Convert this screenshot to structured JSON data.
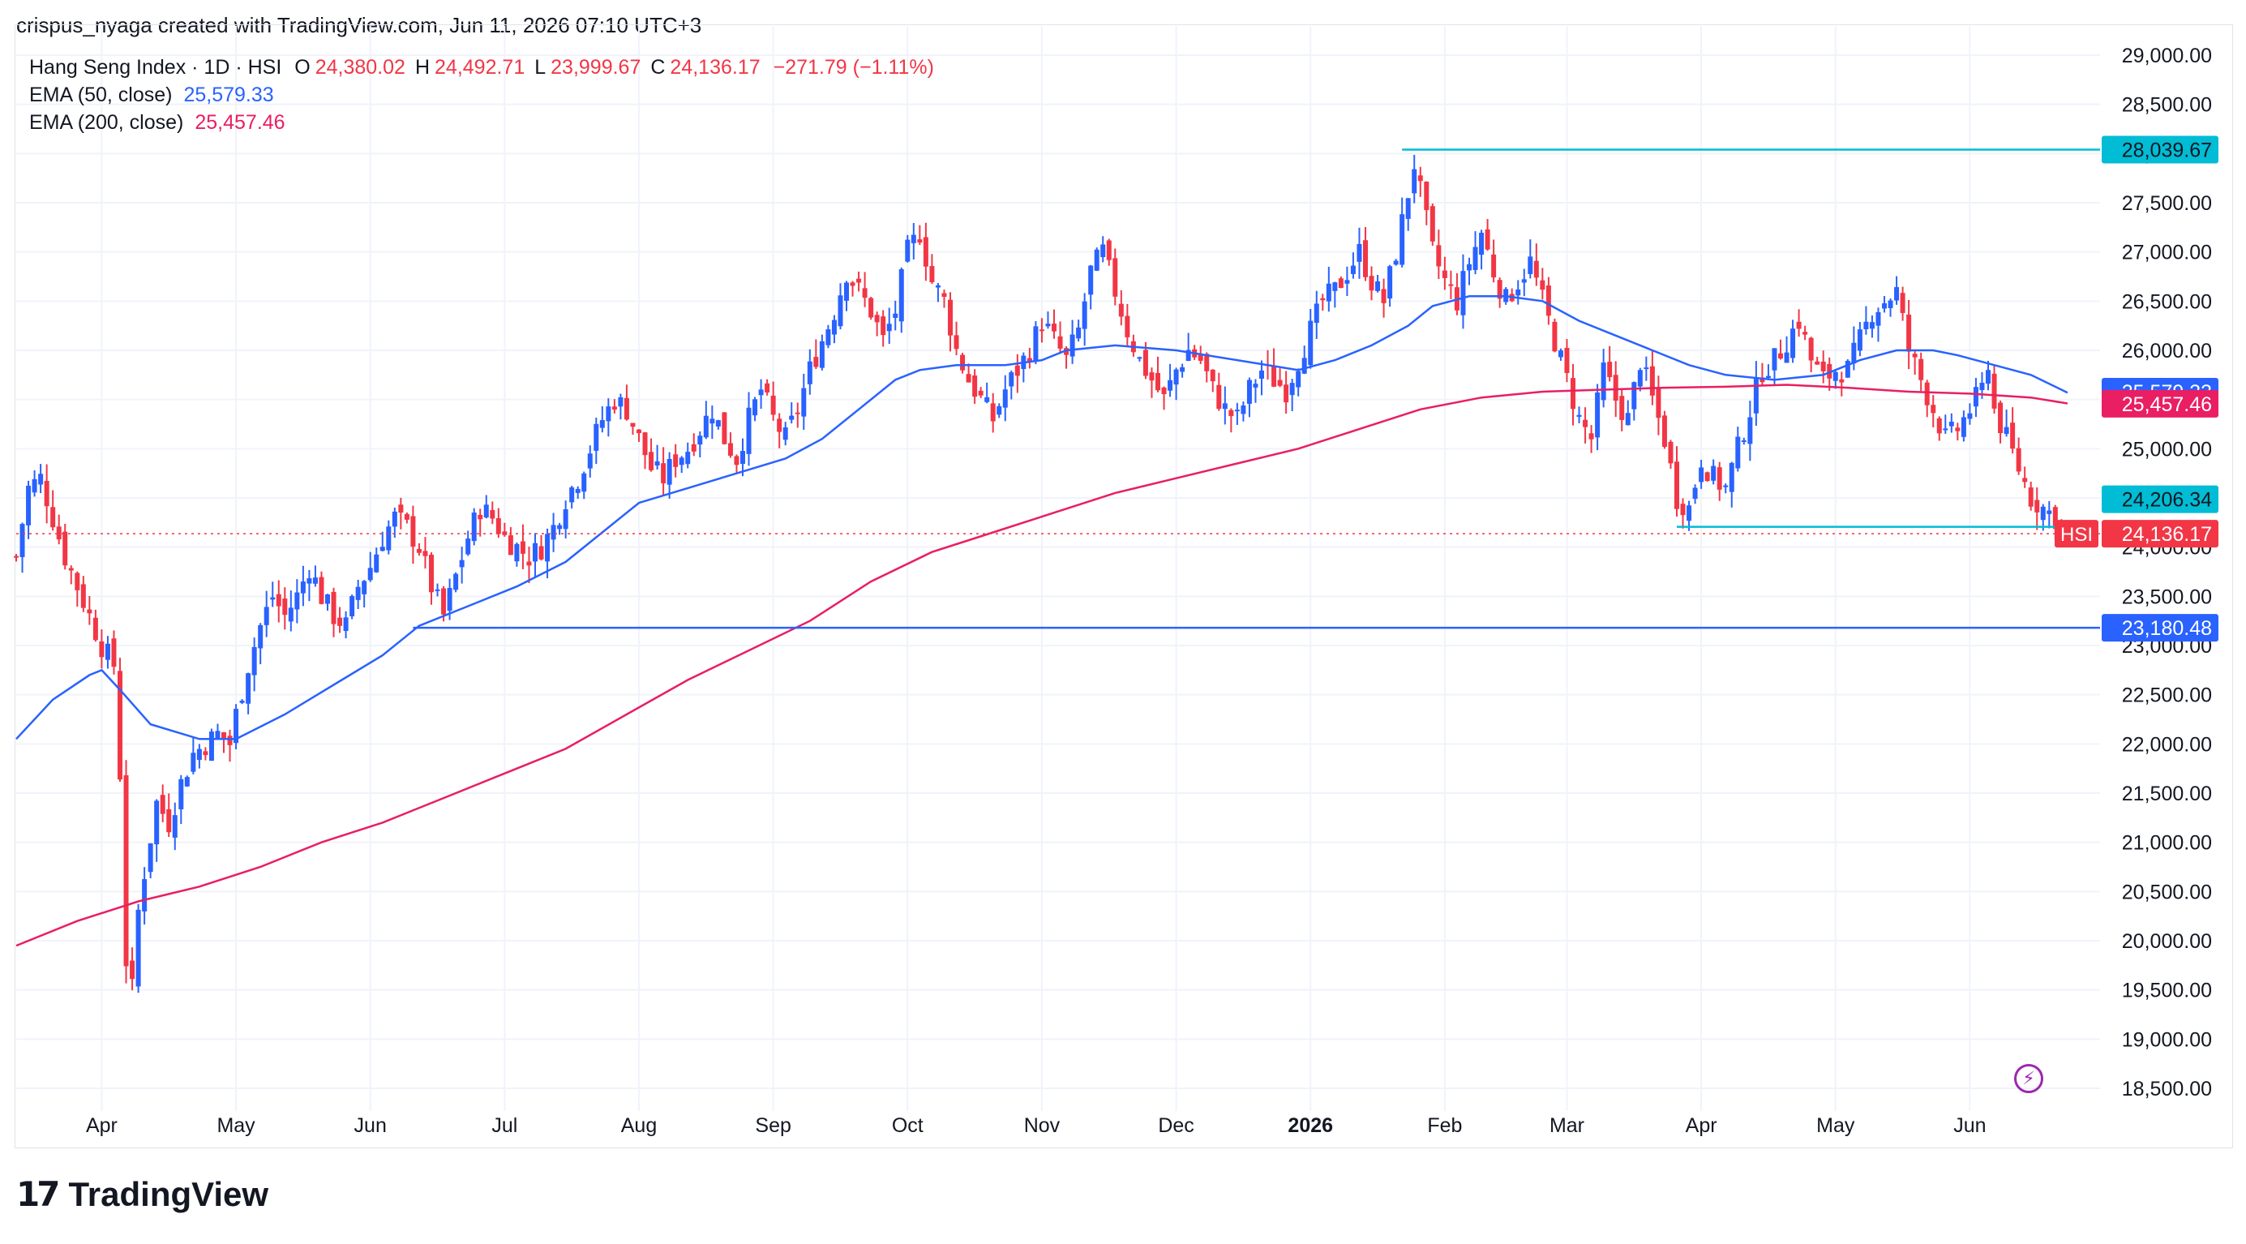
{
  "header": {
    "attribution": "crispus_nyaga created with TradingView.com, Jun 11, 2026 07:10 UTC+3"
  },
  "legend": {
    "symbol": "Hang Seng Index · 1D · HSI",
    "o_label": "O",
    "o_value": "24,380.02",
    "h_label": "H",
    "h_value": "24,492.71",
    "l_label": "L",
    "l_value": "23,999.67",
    "c_label": "C",
    "c_value": "24,136.17",
    "change": "−271.79 (−1.11%)",
    "ema50_label": "EMA (50, close)",
    "ema50_value": "25,579.33",
    "ema200_label": "EMA (200, close)",
    "ema200_value": "25,457.46"
  },
  "footer": {
    "brand": "TradingView"
  },
  "colors": {
    "up": "#2962ff",
    "down": "#f23645",
    "ema50": "#2962ff",
    "ema200": "#e91e63",
    "level": "#00bcd4",
    "support": "#2962ff",
    "grid": "#f0f3fa"
  },
  "chart_data": {
    "type": "candlestick",
    "title": "Hang Seng Index · 1D · HSI",
    "ylim": [
      18300,
      29200
    ],
    "y_ticks": [
      "29,000.00",
      "28,500.00",
      "28,000.00",
      "27,500.00",
      "27,000.00",
      "26,500.00",
      "26,000.00",
      "25,500.00",
      "25,000.00",
      "24,500.00",
      "24,000.00",
      "23,500.00",
      "23,000.00",
      "22,500.00",
      "22,000.00",
      "21,500.00",
      "21,000.00",
      "20,500.00",
      "20,000.00",
      "19,500.00",
      "19,000.00",
      "18,500.00"
    ],
    "x_ticks": [
      "Apr",
      "May",
      "Jun",
      "Jul",
      "Aug",
      "Sep",
      "Oct",
      "Nov",
      "Dec",
      "2026",
      "Feb",
      "Mar",
      "Apr",
      "May",
      "Jun"
    ],
    "x_tick_positions_days": [
      14,
      36,
      58,
      80,
      102,
      124,
      146,
      168,
      190,
      212,
      234,
      254,
      276,
      298,
      320
    ],
    "total_days": 340,
    "price_labels": [
      {
        "value": 28039.67,
        "text": "28,039.67",
        "kind": "level"
      },
      {
        "value": 25579.33,
        "text": "25,579.33",
        "kind": "ema50"
      },
      {
        "value": 25457.46,
        "text": "25,457.46",
        "kind": "ema200"
      },
      {
        "value": 24206.34,
        "text": "24,206.34",
        "kind": "level"
      },
      {
        "value": 24136.17,
        "text": "24,136.17",
        "kind": "last",
        "tag": "HSI"
      },
      {
        "value": 23180.48,
        "text": "23,180.48",
        "kind": "support"
      }
    ],
    "horizontal_lines": [
      {
        "value": 28039.67,
        "from_day": 227,
        "kind": "level"
      },
      {
        "value": 24206.34,
        "from_day": 272,
        "to_day": 337,
        "kind": "level"
      },
      {
        "value": 23180.48,
        "from_day": 65,
        "kind": "support"
      },
      {
        "value": 24136.17,
        "from_day": 0,
        "kind": "last-dotted"
      }
    ],
    "close_path": [
      [
        0,
        23900
      ],
      [
        2,
        24600
      ],
      [
        4,
        24700
      ],
      [
        6,
        24300
      ],
      [
        8,
        23900
      ],
      [
        10,
        23600
      ],
      [
        12,
        23300
      ],
      [
        14,
        23000
      ],
      [
        16,
        22800
      ],
      [
        17,
        21700
      ],
      [
        18,
        19800
      ],
      [
        19,
        19500
      ],
      [
        20,
        20300
      ],
      [
        21,
        20700
      ],
      [
        23,
        21400
      ],
      [
        25,
        21200
      ],
      [
        27,
        21600
      ],
      [
        29,
        21900
      ],
      [
        31,
        22000
      ],
      [
        33,
        22100
      ],
      [
        35,
        22000
      ],
      [
        36,
        22300
      ],
      [
        38,
        22800
      ],
      [
        40,
        23200
      ],
      [
        42,
        23500
      ],
      [
        44,
        23300
      ],
      [
        46,
        23500
      ],
      [
        48,
        23800
      ],
      [
        50,
        23500
      ],
      [
        52,
        23300
      ],
      [
        54,
        23200
      ],
      [
        56,
        23600
      ],
      [
        58,
        23800
      ],
      [
        60,
        24100
      ],
      [
        62,
        24300
      ],
      [
        64,
        24200
      ],
      [
        66,
        24000
      ],
      [
        68,
        23600
      ],
      [
        70,
        23300
      ],
      [
        72,
        23700
      ],
      [
        74,
        24100
      ],
      [
        76,
        24400
      ],
      [
        78,
        24300
      ],
      [
        80,
        24100
      ],
      [
        82,
        24000
      ],
      [
        84,
        23900
      ],
      [
        86,
        24000
      ],
      [
        88,
        24200
      ],
      [
        90,
        24500
      ],
      [
        92,
        24700
      ],
      [
        94,
        25000
      ],
      [
        96,
        25300
      ],
      [
        98,
        25500
      ],
      [
        100,
        25400
      ],
      [
        102,
        25100
      ],
      [
        104,
        24800
      ],
      [
        106,
        24700
      ],
      [
        108,
        24900
      ],
      [
        110,
        25000
      ],
      [
        112,
        25200
      ],
      [
        114,
        25400
      ],
      [
        116,
        25100
      ],
      [
        118,
        24900
      ],
      [
        120,
        25300
      ],
      [
        122,
        25600
      ],
      [
        124,
        25300
      ],
      [
        126,
        25100
      ],
      [
        128,
        25400
      ],
      [
        130,
        25800
      ],
      [
        132,
        26100
      ],
      [
        134,
        26400
      ],
      [
        136,
        26800
      ],
      [
        138,
        26600
      ],
      [
        140,
        26400
      ],
      [
        142,
        26100
      ],
      [
        144,
        26400
      ],
      [
        146,
        27000
      ],
      [
        148,
        27200
      ],
      [
        150,
        26700
      ],
      [
        152,
        26500
      ],
      [
        154,
        26000
      ],
      [
        156,
        25700
      ],
      [
        158,
        25500
      ],
      [
        160,
        25300
      ],
      [
        162,
        25600
      ],
      [
        164,
        25800
      ],
      [
        166,
        26000
      ],
      [
        168,
        26300
      ],
      [
        170,
        26100
      ],
      [
        172,
        25900
      ],
      [
        174,
        26200
      ],
      [
        176,
        26800
      ],
      [
        178,
        27000
      ],
      [
        180,
        26600
      ],
      [
        182,
        26200
      ],
      [
        184,
        25900
      ],
      [
        186,
        25700
      ],
      [
        188,
        25500
      ],
      [
        190,
        25800
      ],
      [
        192,
        26000
      ],
      [
        194,
        25900
      ],
      [
        196,
        25600
      ],
      [
        198,
        25400
      ],
      [
        200,
        25300
      ],
      [
        202,
        25600
      ],
      [
        204,
        25800
      ],
      [
        206,
        25700
      ],
      [
        208,
        25600
      ],
      [
        210,
        25900
      ],
      [
        212,
        26200
      ],
      [
        214,
        26500
      ],
      [
        216,
        26600
      ],
      [
        218,
        26800
      ],
      [
        220,
        27000
      ],
      [
        222,
        26700
      ],
      [
        224,
        26500
      ],
      [
        226,
        27000
      ],
      [
        228,
        27600
      ],
      [
        229,
        27900
      ],
      [
        230,
        27600
      ],
      [
        232,
        27000
      ],
      [
        234,
        26700
      ],
      [
        236,
        26500
      ],
      [
        238,
        26900
      ],
      [
        240,
        27200
      ],
      [
        242,
        26800
      ],
      [
        244,
        26500
      ],
      [
        246,
        26700
      ],
      [
        248,
        26900
      ],
      [
        250,
        26500
      ],
      [
        252,
        26100
      ],
      [
        254,
        25700
      ],
      [
        256,
        25300
      ],
      [
        258,
        25100
      ],
      [
        260,
        25800
      ],
      [
        262,
        25500
      ],
      [
        264,
        25300
      ],
      [
        266,
        25900
      ],
      [
        268,
        25500
      ],
      [
        270,
        25100
      ],
      [
        272,
        24500
      ],
      [
        274,
        24400
      ],
      [
        276,
        24900
      ],
      [
        278,
        24700
      ],
      [
        280,
        24600
      ],
      [
        282,
        25000
      ],
      [
        284,
        25400
      ],
      [
        286,
        25800
      ],
      [
        288,
        25900
      ],
      [
        290,
        26100
      ],
      [
        292,
        26300
      ],
      [
        294,
        25900
      ],
      [
        296,
        25700
      ],
      [
        298,
        25800
      ],
      [
        300,
        25800
      ],
      [
        302,
        26100
      ],
      [
        304,
        26400
      ],
      [
        306,
        26500
      ],
      [
        308,
        26600
      ],
      [
        310,
        26000
      ],
      [
        312,
        25700
      ],
      [
        314,
        25400
      ],
      [
        316,
        25100
      ],
      [
        318,
        25200
      ],
      [
        320,
        25400
      ],
      [
        322,
        25600
      ],
      [
        323,
        25900
      ],
      [
        324,
        25400
      ],
      [
        326,
        25100
      ],
      [
        328,
        24800
      ],
      [
        330,
        24500
      ],
      [
        332,
        24400
      ],
      [
        334,
        24300
      ],
      [
        336,
        24136
      ]
    ],
    "ema50_path": [
      [
        0,
        22050
      ],
      [
        6,
        22450
      ],
      [
        12,
        22700
      ],
      [
        14,
        22750
      ],
      [
        17,
        22550
      ],
      [
        22,
        22200
      ],
      [
        30,
        22050
      ],
      [
        36,
        22050
      ],
      [
        44,
        22300
      ],
      [
        52,
        22600
      ],
      [
        60,
        22900
      ],
      [
        66,
        23200
      ],
      [
        74,
        23400
      ],
      [
        82,
        23600
      ],
      [
        90,
        23850
      ],
      [
        96,
        24150
      ],
      [
        102,
        24450
      ],
      [
        110,
        24600
      ],
      [
        118,
        24750
      ],
      [
        126,
        24900
      ],
      [
        132,
        25100
      ],
      [
        138,
        25400
      ],
      [
        144,
        25700
      ],
      [
        148,
        25800
      ],
      [
        154,
        25850
      ],
      [
        162,
        25850
      ],
      [
        168,
        25900
      ],
      [
        172,
        26000
      ],
      [
        180,
        26050
      ],
      [
        190,
        26000
      ],
      [
        200,
        25900
      ],
      [
        210,
        25800
      ],
      [
        216,
        25900
      ],
      [
        222,
        26050
      ],
      [
        228,
        26250
      ],
      [
        232,
        26450
      ],
      [
        238,
        26550
      ],
      [
        244,
        26550
      ],
      [
        250,
        26500
      ],
      [
        256,
        26300
      ],
      [
        262,
        26150
      ],
      [
        268,
        26000
      ],
      [
        274,
        25850
      ],
      [
        280,
        25750
      ],
      [
        288,
        25700
      ],
      [
        296,
        25750
      ],
      [
        302,
        25900
      ],
      [
        308,
        26000
      ],
      [
        314,
        26000
      ],
      [
        318,
        25950
      ],
      [
        324,
        25850
      ],
      [
        330,
        25750
      ],
      [
        336,
        25570
      ]
    ],
    "ema200_path": [
      [
        0,
        19950
      ],
      [
        10,
        20200
      ],
      [
        20,
        20400
      ],
      [
        30,
        20550
      ],
      [
        40,
        20750
      ],
      [
        50,
        21000
      ],
      [
        60,
        21200
      ],
      [
        70,
        21450
      ],
      [
        80,
        21700
      ],
      [
        90,
        21950
      ],
      [
        100,
        22300
      ],
      [
        110,
        22650
      ],
      [
        120,
        22950
      ],
      [
        130,
        23250
      ],
      [
        140,
        23650
      ],
      [
        150,
        23950
      ],
      [
        160,
        24150
      ],
      [
        170,
        24350
      ],
      [
        180,
        24550
      ],
      [
        190,
        24700
      ],
      [
        200,
        24850
      ],
      [
        210,
        25000
      ],
      [
        220,
        25200
      ],
      [
        230,
        25400
      ],
      [
        240,
        25520
      ],
      [
        250,
        25580
      ],
      [
        260,
        25600
      ],
      [
        270,
        25620
      ],
      [
        280,
        25630
      ],
      [
        290,
        25650
      ],
      [
        300,
        25620
      ],
      [
        310,
        25580
      ],
      [
        320,
        25560
      ],
      [
        330,
        25520
      ],
      [
        336,
        25460
      ]
    ]
  }
}
